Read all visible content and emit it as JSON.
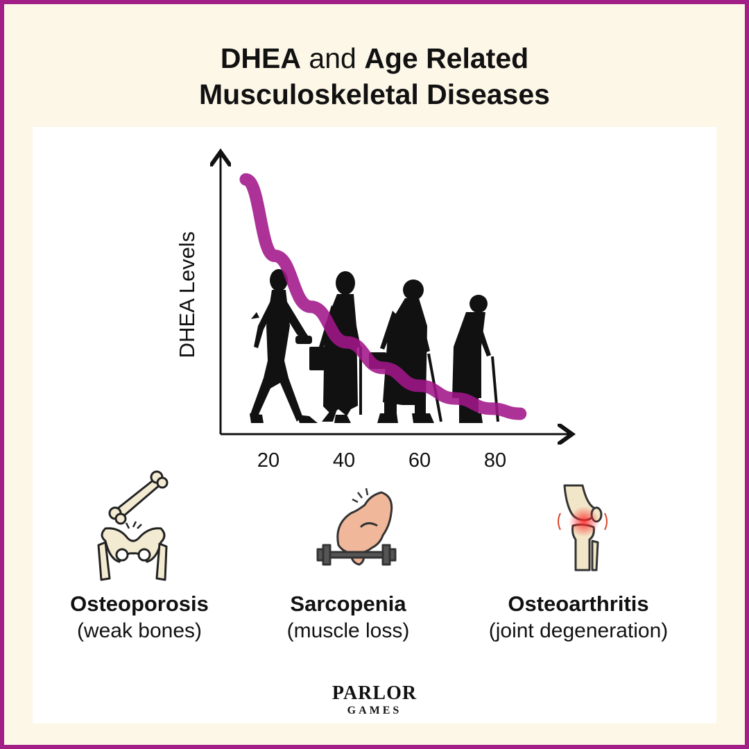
{
  "title": {
    "part1": "DHEA",
    "part2": " and ",
    "part3": "Age Related",
    "line2": "Musculoskeletal Diseases"
  },
  "colors": {
    "frame": "#a11f86",
    "background": "#fdf7e8",
    "curve": "#a0168a",
    "silhouette": "#111111"
  },
  "chart_data": {
    "type": "line",
    "ylabel": "DHEA Levels",
    "xlabel": "",
    "x_ticks": [
      "20",
      "40",
      "60",
      "80"
    ],
    "x": [
      12,
      20,
      30,
      40,
      50,
      60,
      70,
      80,
      88
    ],
    "series": [
      {
        "values": [
          100,
          70,
          50,
          36,
          26,
          19,
          14,
          10,
          8
        ]
      }
    ],
    "ylim": [
      0,
      110
    ],
    "xlim": [
      5,
      95
    ],
    "grid": false,
    "illustration": "silhouettes of a woman at four life stages walking, ages 20 to 80"
  },
  "conditions": [
    {
      "icon": "hip-bone-icon",
      "name": "Osteoporosis",
      "desc": "(weak bones)"
    },
    {
      "icon": "flexed-arm-dumbbell-icon",
      "name": "Sarcopenia",
      "desc": "(muscle loss)"
    },
    {
      "icon": "knee-joint-icon",
      "name": "Osteoarthritis",
      "desc": "(joint degeneration)"
    }
  ],
  "logo": {
    "line1": "PARLOR",
    "line2": "GAMES"
  }
}
